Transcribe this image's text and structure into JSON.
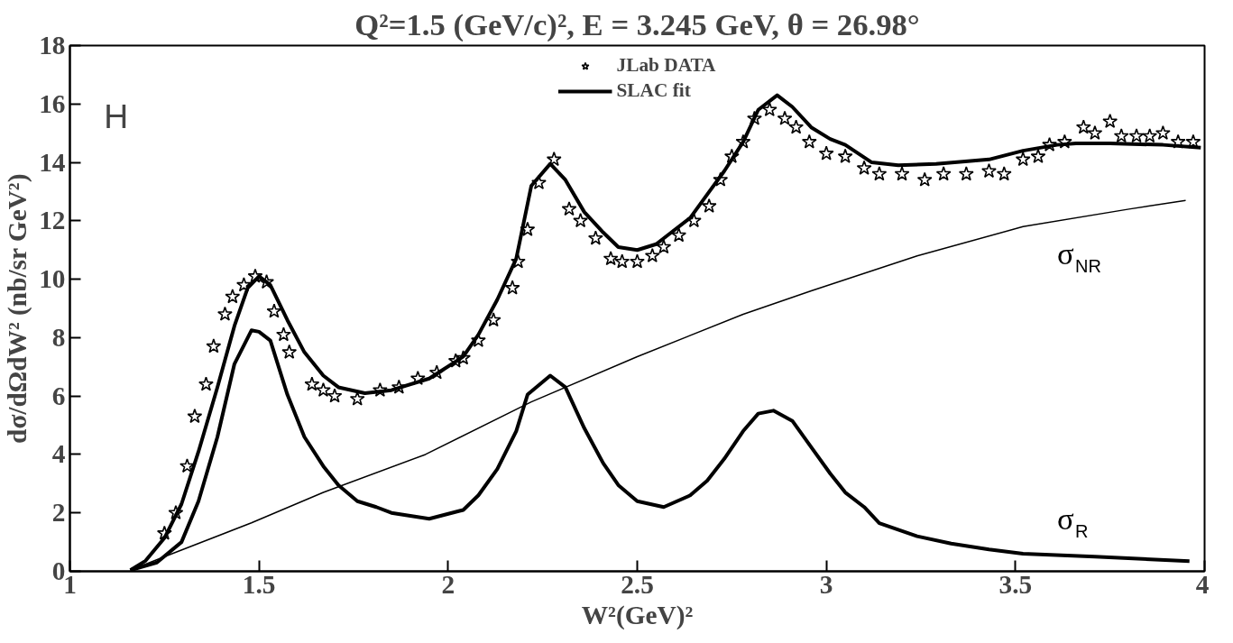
{
  "chart_data": {
    "type": "line",
    "title": "Q²=1.5 (GeV/c)², E = 3.245 GeV, θ = 26.98°",
    "xlabel": "W²(GeV)²",
    "ylabel": "dσ/dΩdW² (nb/sr GeV²)",
    "annotations": [
      "H"
    ],
    "xlim": [
      1,
      4
    ],
    "xticks": [
      1,
      1.5,
      2,
      2.5,
      3,
      3.5,
      4
    ],
    "ylim": [
      0,
      18
    ],
    "yticks": [
      0,
      2,
      4,
      6,
      8,
      10,
      12,
      14,
      16,
      18
    ],
    "grid": false,
    "legend": "top",
    "series": [
      {
        "name": "JLab DATA",
        "type": "scatter",
        "marker": "star",
        "color": "#000000",
        "x": [
          1.25,
          1.28,
          1.31,
          1.33,
          1.36,
          1.38,
          1.41,
          1.43,
          1.46,
          1.49,
          1.52,
          1.54,
          1.565,
          1.58,
          1.64,
          1.67,
          1.7,
          1.76,
          1.82,
          1.87,
          1.92,
          1.97,
          2.02,
          2.04,
          2.08,
          2.12,
          2.17,
          2.185,
          2.21,
          2.24,
          2.28,
          2.32,
          2.35,
          2.39,
          2.43,
          2.46,
          2.5,
          2.54,
          2.57,
          2.61,
          2.65,
          2.69,
          2.72,
          2.75,
          2.78,
          2.81,
          2.85,
          2.89,
          2.92,
          2.955,
          3.0,
          3.05,
          3.1,
          3.14,
          3.2,
          3.26,
          3.31,
          3.37,
          3.43,
          3.47,
          3.52,
          3.56,
          3.59,
          3.63,
          3.68,
          3.71,
          3.75,
          3.78,
          3.82,
          3.855,
          3.89,
          3.93,
          3.97
        ],
        "values": [
          1.3,
          2.0,
          3.6,
          5.3,
          6.4,
          7.7,
          8.8,
          9.4,
          9.8,
          10.1,
          9.9,
          8.9,
          8.1,
          7.5,
          6.4,
          6.2,
          6.0,
          5.9,
          6.2,
          6.3,
          6.6,
          6.8,
          7.2,
          7.3,
          7.9,
          8.6,
          9.7,
          10.6,
          11.7,
          13.3,
          14.1,
          12.4,
          12.0,
          11.4,
          10.7,
          10.6,
          10.6,
          10.8,
          11.1,
          11.5,
          12.0,
          12.5,
          13.4,
          14.2,
          14.7,
          15.5,
          15.8,
          15.5,
          15.2,
          14.7,
          14.3,
          14.2,
          13.8,
          13.6,
          13.6,
          13.4,
          13.6,
          13.6,
          13.7,
          13.6,
          14.1,
          14.2,
          14.6,
          14.7,
          15.2,
          15.0,
          15.4,
          14.9,
          14.9,
          14.9,
          15.0,
          14.7,
          14.7
        ]
      },
      {
        "name": "SLAC fit",
        "color": "#000000",
        "x": [
          1.16,
          1.2,
          1.25,
          1.295,
          1.34,
          1.39,
          1.435,
          1.47,
          1.5,
          1.53,
          1.575,
          1.62,
          1.67,
          1.71,
          1.78,
          1.85,
          1.95,
          2.04,
          2.08,
          2.13,
          2.18,
          2.22,
          2.27,
          2.31,
          2.36,
          2.41,
          2.45,
          2.5,
          2.55,
          2.59,
          2.64,
          2.685,
          2.73,
          2.78,
          2.82,
          2.87,
          2.91,
          2.96,
          3.01,
          3.05,
          3.12,
          3.19,
          3.29,
          3.43,
          3.52,
          3.61,
          3.66,
          3.75,
          3.89,
          3.99
        ],
        "values": [
          0.04,
          0.36,
          1.14,
          2.3,
          4.1,
          6.3,
          8.4,
          9.7,
          10.1,
          9.8,
          8.6,
          7.5,
          6.7,
          6.3,
          6.1,
          6.2,
          6.6,
          7.35,
          8.1,
          9.3,
          10.7,
          13.2,
          13.95,
          13.4,
          12.3,
          11.6,
          11.1,
          11.0,
          11.2,
          11.6,
          12.1,
          12.9,
          13.7,
          14.7,
          15.8,
          16.3,
          15.9,
          15.2,
          14.8,
          14.6,
          14.0,
          13.9,
          13.95,
          14.1,
          14.4,
          14.6,
          14.65,
          14.65,
          14.6,
          14.5
        ]
      },
      {
        "name": "σ$_{NR}$",
        "color": "#000000",
        "x": [
          1.16,
          1.27,
          1.48,
          1.67,
          1.94,
          2.22,
          2.5,
          2.78,
          2.96,
          3.24,
          3.52,
          3.8,
          3.95
        ],
        "values": [
          0.04,
          0.6,
          1.66,
          2.7,
          4.0,
          5.8,
          7.35,
          8.8,
          9.6,
          10.8,
          11.8,
          12.4,
          12.7
        ]
      },
      {
        "name": "σ$_{R}$",
        "color": "#000000",
        "x": [
          1.16,
          1.23,
          1.295,
          1.34,
          1.39,
          1.435,
          1.48,
          1.5,
          1.53,
          1.575,
          1.62,
          1.67,
          1.71,
          1.76,
          1.81,
          1.85,
          1.95,
          2.04,
          2.08,
          2.13,
          2.18,
          2.21,
          2.27,
          2.31,
          2.36,
          2.41,
          2.45,
          2.5,
          2.57,
          2.64,
          2.685,
          2.73,
          2.78,
          2.82,
          2.86,
          2.91,
          2.96,
          3.01,
          3.05,
          3.1,
          3.14,
          3.24,
          3.33,
          3.43,
          3.52,
          3.71,
          3.96
        ],
        "values": [
          0.04,
          0.3,
          1.0,
          2.4,
          4.6,
          7.1,
          8.25,
          8.2,
          7.9,
          6.05,
          4.6,
          3.6,
          2.95,
          2.4,
          2.2,
          2.0,
          1.8,
          2.1,
          2.6,
          3.5,
          4.8,
          6.05,
          6.7,
          6.3,
          4.9,
          3.7,
          2.95,
          2.4,
          2.2,
          2.6,
          3.1,
          3.85,
          4.8,
          5.4,
          5.5,
          5.15,
          4.25,
          3.35,
          2.7,
          2.2,
          1.65,
          1.2,
          0.95,
          0.75,
          0.6,
          0.5,
          0.35
        ]
      }
    ]
  }
}
